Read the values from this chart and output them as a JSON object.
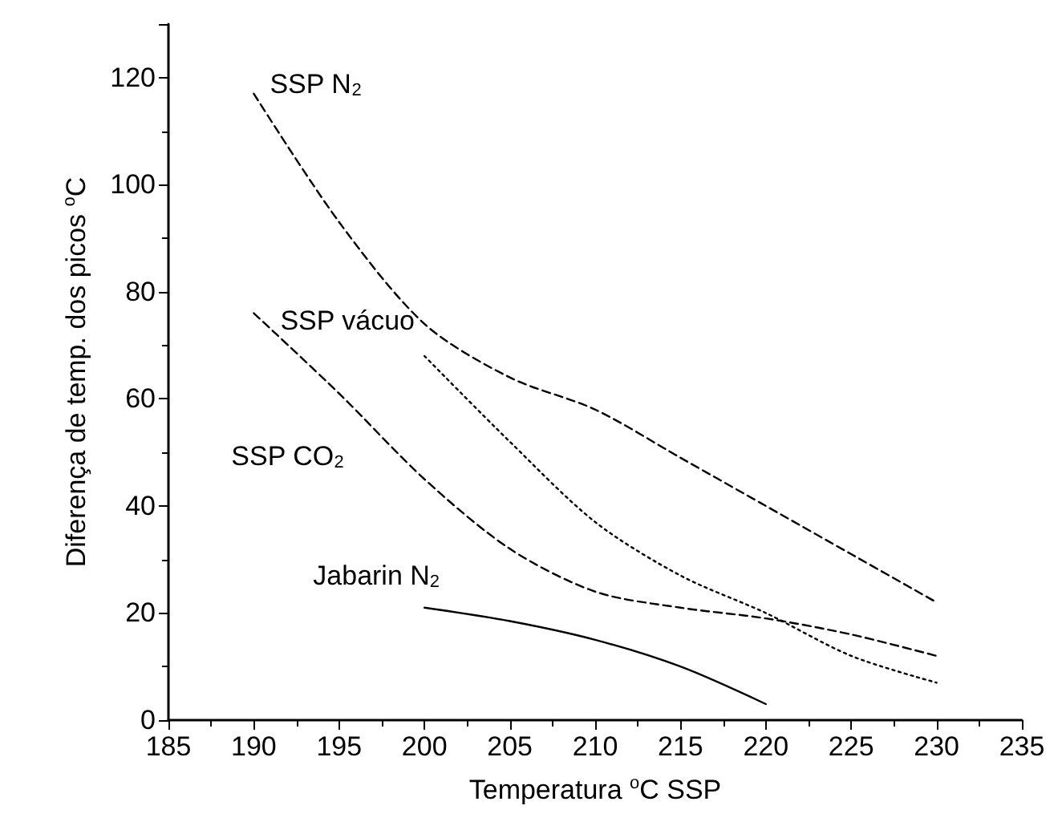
{
  "chart_data": {
    "type": "line",
    "xlabel": "Temperatura $^{o}$C SSP",
    "ylabel": "Diferença de temp. dos picos $^{o}$C",
    "xlim": [
      185,
      235
    ],
    "xticks": [
      185,
      190,
      195,
      200,
      205,
      210,
      215,
      220,
      225,
      230,
      235
    ],
    "ylim": [
      0,
      130
    ],
    "yticks": [
      0,
      20,
      40,
      60,
      80,
      100,
      120
    ],
    "grid": false,
    "legend": false,
    "marker": "none",
    "series": [
      {
        "name": "SSP N$_{2}$",
        "color": "#000000",
        "line_style": "dashed",
        "x": [
          190,
          195,
          200,
          205,
          210,
          215,
          220,
          225,
          230
        ],
        "values": [
          117,
          93,
          74,
          64,
          58,
          49,
          40,
          31,
          22
        ]
      },
      {
        "name": "SSP vácuo",
        "color": "#000000",
        "line_style": "dotted",
        "x": [
          200,
          205,
          210,
          215,
          220,
          225,
          230
        ],
        "values": [
          68,
          52,
          37,
          27,
          20,
          12,
          7
        ]
      },
      {
        "name": "SSP CO$_{2}$",
        "color": "#000000",
        "line_style": "dashed",
        "x": [
          190,
          195,
          200,
          205,
          210,
          215,
          220,
          225,
          230
        ],
        "values": [
          76,
          61,
          45,
          32,
          24,
          21,
          19,
          16,
          12
        ]
      },
      {
        "name": "Jabarin N$_{2}$",
        "color": "#000000",
        "line_style": "solid",
        "x": [
          200,
          205,
          210,
          215,
          220
        ],
        "values": [
          21,
          18.5,
          15,
          10,
          3
        ]
      }
    ]
  }
}
